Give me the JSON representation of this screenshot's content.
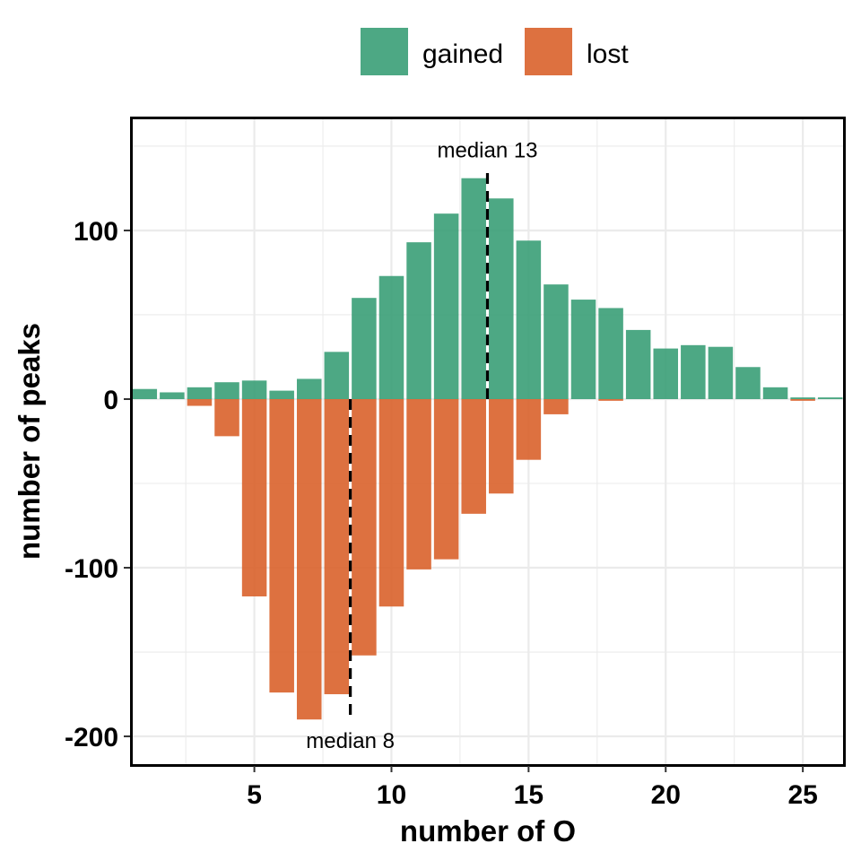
{
  "chart_data": {
    "type": "bar",
    "xlabel": "number of O",
    "ylabel": "number of peaks",
    "xlim": [
      0.5,
      26.5
    ],
    "ylim": [
      -217,
      167
    ],
    "x_ticks": [
      5,
      10,
      15,
      20,
      25
    ],
    "y_ticks": [
      -200,
      -100,
      0,
      100
    ],
    "grid": true,
    "legend_position": "top",
    "x": [
      1,
      2,
      3,
      4,
      5,
      6,
      7,
      8,
      9,
      10,
      11,
      12,
      13,
      14,
      15,
      16,
      17,
      18,
      19,
      20,
      21,
      22,
      23,
      24,
      25,
      26
    ],
    "series": [
      {
        "name": "gained",
        "color": "#3a9e77",
        "values": [
          6,
          4,
          7,
          10,
          11,
          5,
          12,
          28,
          60,
          73,
          93,
          110,
          131,
          119,
          94,
          68,
          59,
          54,
          41,
          30,
          32,
          31,
          19,
          7,
          1,
          1
        ]
      },
      {
        "name": "lost",
        "color": "#d9622b",
        "values": [
          0,
          0,
          -4,
          -22,
          -117,
          -174,
          -190,
          -175,
          -152,
          -123,
          -101,
          -95,
          -68,
          -56,
          -36,
          -9,
          0,
          -1,
          0,
          0,
          0,
          0,
          0,
          0,
          -1,
          0
        ]
      }
    ],
    "annotations": [
      {
        "text": "median 13",
        "x": 13.5,
        "series": "gained"
      },
      {
        "text": "median 8",
        "x": 8.5,
        "series": "lost"
      }
    ]
  }
}
